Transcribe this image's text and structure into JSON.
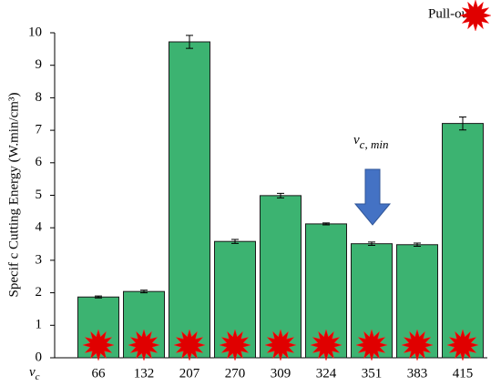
{
  "chart_data": {
    "type": "bar",
    "y_label": "Specif c Cutting Energy (W.min/cm³)",
    "x_label": {
      "main": "v",
      "sub": "c"
    },
    "annotation": {
      "main": "v",
      "sub": "c, min"
    },
    "legend_label": "Pull-out:",
    "categories": [
      "66",
      "132",
      "207",
      "270",
      "309",
      "324",
      "351",
      "383",
      "415"
    ],
    "values": [
      1.87,
      2.04,
      9.72,
      3.58,
      4.99,
      4.12,
      3.51,
      3.48,
      7.21
    ],
    "errors": [
      0.03,
      0.04,
      0.2,
      0.06,
      0.07,
      0.03,
      0.05,
      0.05,
      0.2
    ],
    "color": "#3cb371",
    "ylim": [
      0,
      10
    ],
    "yticks": [
      0,
      1,
      2,
      3,
      4,
      5,
      6,
      7,
      8,
      9,
      10
    ]
  }
}
